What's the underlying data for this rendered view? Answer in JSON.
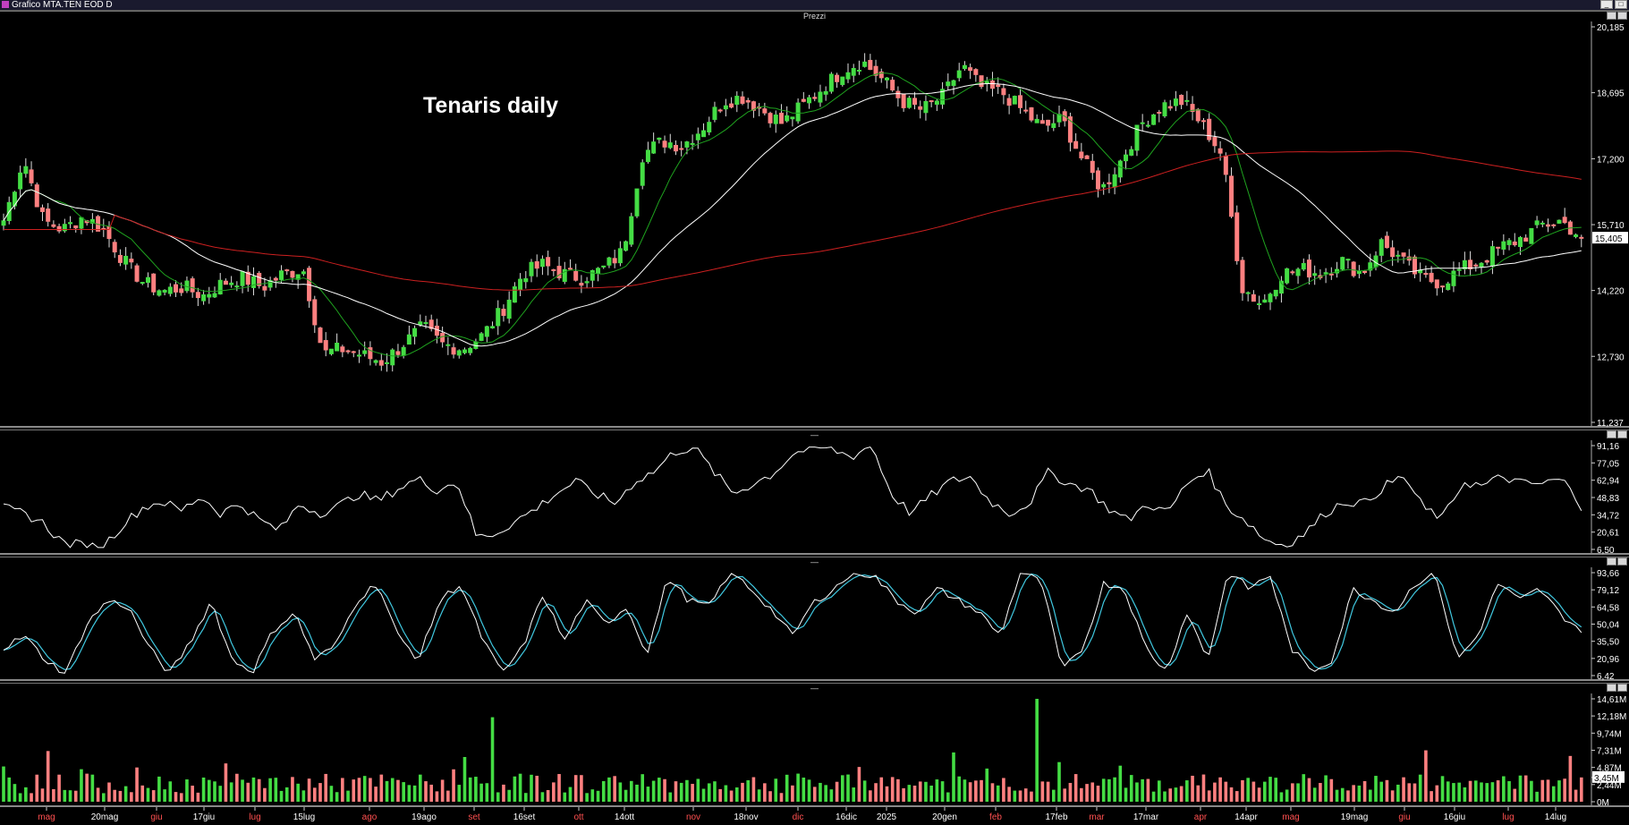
{
  "window": {
    "title": "Grafico MTA.TEN EOD D",
    "price_pane_label": "Prezzi",
    "divider_mark": "—"
  },
  "colors": {
    "bull": "#44dd44",
    "bear": "#ff8080",
    "ma_fast": "#1fa31f",
    "ma_mid": "#ffffff",
    "ma_slow": "#cc2020",
    "stoch_k": "#ffffff",
    "stoch_d": "#40c8e0",
    "axis_month": "#ff5050",
    "axis_date": "#ffffff"
  },
  "chart_data": [
    {
      "type": "candlestick",
      "title": "Tenaris daily",
      "yaxis_ticks": [
        "20,185",
        "18,695",
        "17,200",
        "15,710",
        "14,220",
        "12,730",
        "11,237"
      ],
      "ylim": [
        11.237,
        20.185
      ],
      "last_price": "15,405",
      "moving_averages": [
        "short (green)",
        "medium (white)",
        "long (red)"
      ],
      "xaxis_labels": [
        {
          "label": "mag",
          "kind": "month"
        },
        {
          "label": "20mag",
          "kind": "date"
        },
        {
          "label": "giu",
          "kind": "month"
        },
        {
          "label": "17giu",
          "kind": "date"
        },
        {
          "label": "lug",
          "kind": "month"
        },
        {
          "label": "15lug",
          "kind": "date"
        },
        {
          "label": "ago",
          "kind": "month"
        },
        {
          "label": "19ago",
          "kind": "date"
        },
        {
          "label": "set",
          "kind": "month"
        },
        {
          "label": "16set",
          "kind": "date"
        },
        {
          "label": "ott",
          "kind": "month"
        },
        {
          "label": "14ott",
          "kind": "date"
        },
        {
          "label": "nov",
          "kind": "month"
        },
        {
          "label": "18nov",
          "kind": "date"
        },
        {
          "label": "dic",
          "kind": "month"
        },
        {
          "label": "16dic",
          "kind": "date"
        },
        {
          "label": "2025",
          "kind": "date"
        },
        {
          "label": "20gen",
          "kind": "date"
        },
        {
          "label": "feb",
          "kind": "month"
        },
        {
          "label": "17feb",
          "kind": "date"
        },
        {
          "label": "mar",
          "kind": "month"
        },
        {
          "label": "17mar",
          "kind": "date"
        },
        {
          "label": "apr",
          "kind": "month"
        },
        {
          "label": "14apr",
          "kind": "date"
        },
        {
          "label": "mag",
          "kind": "month"
        },
        {
          "label": "19mag",
          "kind": "date"
        },
        {
          "label": "giu",
          "kind": "month"
        },
        {
          "label": "16giu",
          "kind": "date"
        },
        {
          "label": "lug",
          "kind": "month"
        },
        {
          "label": "14lug",
          "kind": "date"
        }
      ],
      "close_anchors": [
        15.8,
        17.2,
        15.8,
        15.6,
        15.9,
        15.6,
        14.9,
        14.4,
        14.2,
        14.3,
        14.1,
        14.4,
        14.5,
        14.3,
        14.6,
        14.7,
        12.8,
        12.9,
        12.75,
        12.6,
        13.0,
        13.4,
        13.0,
        12.9,
        13.2,
        13.8,
        14.6,
        14.8,
        14.6,
        14.5,
        14.7,
        15.1,
        17.3,
        17.6,
        17.5,
        17.9,
        18.5,
        18.6,
        18.3,
        18.0,
        18.4,
        18.8,
        19.2,
        19.4,
        19.0,
        18.5,
        18.3,
        18.6,
        19.3,
        18.8,
        18.7,
        18.3,
        17.9,
        18.1,
        17.2,
        16.5,
        17.2,
        18.0,
        18.4,
        18.5,
        18.0,
        17.3,
        14.3,
        13.9,
        14.6,
        14.7,
        14.6,
        14.9,
        14.6,
        15.3,
        14.9,
        14.5,
        14.4,
        14.7,
        14.9,
        15.2,
        15.4,
        15.7,
        15.8,
        15.405
      ],
      "bars": 285
    },
    {
      "type": "line",
      "yaxis_ticks": [
        "91,16",
        "77,05",
        "62,94",
        "48,83",
        "34,72",
        "20,61",
        "6,50"
      ],
      "ylim": [
        6.5,
        91.16
      ],
      "values": [
        40,
        36,
        28,
        12,
        10,
        8,
        26,
        40,
        46,
        38,
        50,
        36,
        44,
        30,
        22,
        44,
        36,
        42,
        52,
        46,
        56,
        64,
        55,
        62,
        16,
        20,
        30,
        40,
        52,
        62,
        52,
        44,
        62,
        70,
        86,
        90,
        70,
        52,
        60,
        68,
        84,
        90,
        88,
        82,
        92,
        52,
        36,
        50,
        62,
        66,
        46,
        36,
        44,
        70,
        60,
        56,
        40,
        30,
        44,
        36,
        60,
        72,
        42,
        30,
        14,
        10,
        20,
        36,
        46,
        44,
        58,
        66,
        40,
        32,
        62,
        58,
        66,
        60,
        60,
        64,
        42
      ]
    },
    {
      "type": "line",
      "yaxis_ticks": [
        "93,66",
        "79,12",
        "64,58",
        "50,04",
        "35,50",
        "20,96",
        "6,42"
      ],
      "ylim": [
        6.42,
        93.66
      ],
      "series": [
        {
          "values": [
            30,
            40,
            20,
            8,
            50,
            70,
            65,
            30,
            8,
            35,
            70,
            20,
            10,
            45,
            60,
            20,
            32,
            70,
            85,
            40,
            20,
            70,
            84,
            40,
            8,
            30,
            76,
            35,
            70,
            50,
            65,
            25,
            90,
            70,
            65,
            95,
            80,
            62,
            40,
            68,
            80,
            95,
            90,
            70,
            60,
            80,
            70,
            60,
            40,
            95,
            85,
            10,
            30,
            85,
            80,
            30,
            10,
            60,
            20,
            95,
            80,
            92,
            30,
            10,
            20,
            80,
            70,
            60,
            85,
            92,
            20,
            40,
            85,
            70,
            80,
            58,
            45
          ]
        },
        {
          "values": [
            28,
            36,
            22,
            10,
            44,
            66,
            68,
            34,
            10,
            32,
            64,
            24,
            12,
            40,
            58,
            22,
            30,
            64,
            82,
            44,
            22,
            66,
            82,
            44,
            10,
            28,
            70,
            38,
            66,
            52,
            62,
            28,
            86,
            72,
            66,
            92,
            82,
            64,
            42,
            64,
            78,
            92,
            90,
            72,
            62,
            78,
            72,
            62,
            42,
            92,
            86,
            14,
            28,
            82,
            80,
            34,
            12,
            56,
            22,
            92,
            82,
            90,
            34,
            12,
            20,
            76,
            72,
            62,
            82,
            90,
            24,
            38,
            82,
            72,
            78,
            60,
            48
          ]
        }
      ]
    },
    {
      "type": "bar",
      "yaxis_ticks": [
        "14,61M",
        "12,18M",
        "9,74M",
        "7,31M",
        "4,87M",
        "3,45M",
        "2,44M",
        "0M"
      ],
      "ylim": [
        0,
        14.61
      ],
      "last_value": "3,45M",
      "spikes": [
        {
          "index": 8,
          "value": 7.2
        },
        {
          "index": 88,
          "value": 12.0
        },
        {
          "index": 186,
          "value": 14.61
        },
        {
          "index": 171,
          "value": 7.0
        },
        {
          "index": 256,
          "value": 7.3
        },
        {
          "index": 282,
          "value": 6.5
        }
      ],
      "typical_range": [
        1.2,
        4.0
      ]
    }
  ]
}
